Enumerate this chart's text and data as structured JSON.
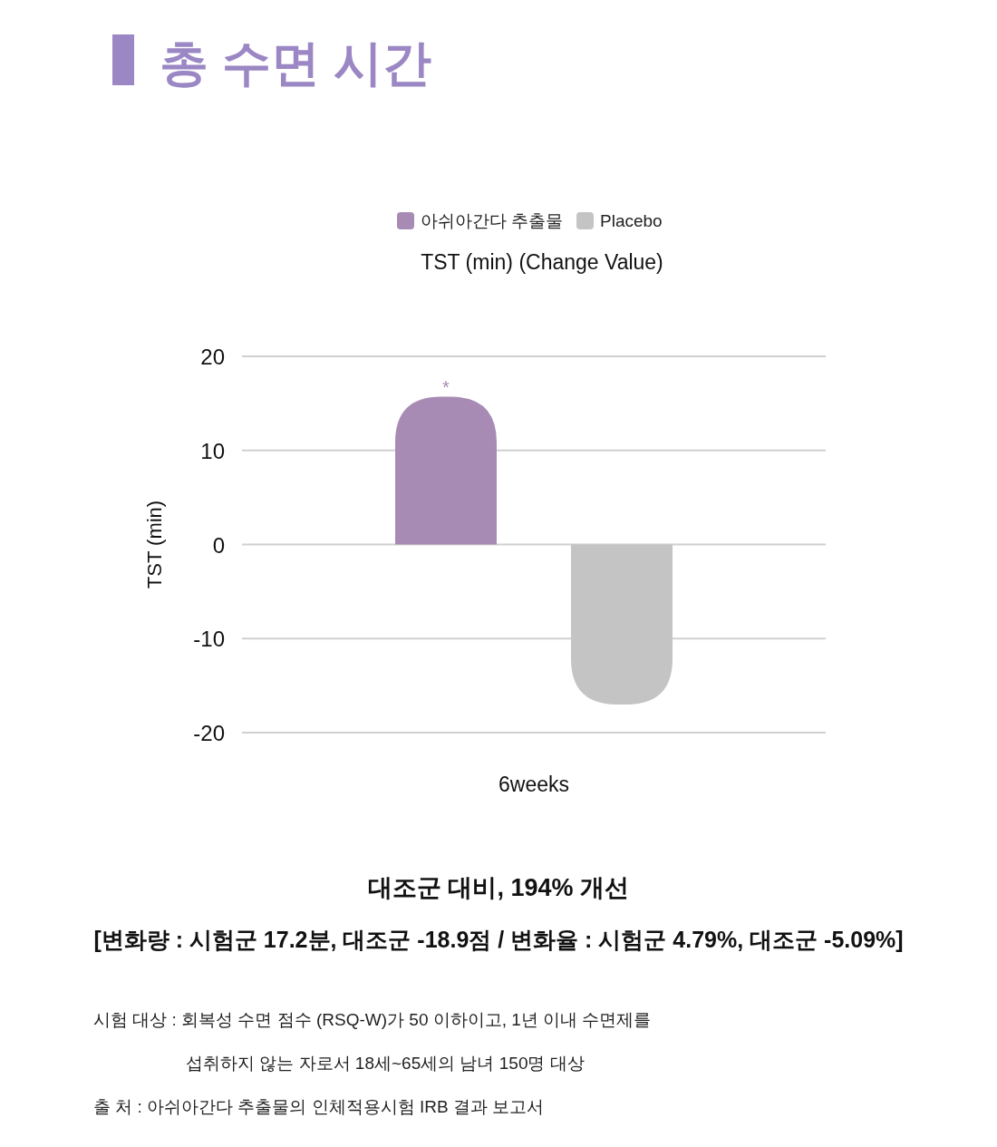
{
  "chart_data": {
    "type": "bar",
    "title": "총 수면 시간",
    "subtitle": "TST (min) (Change Value)",
    "ylabel": "TST (min)",
    "categories": [
      "6weeks"
    ],
    "series": [
      {
        "name": "아쉬아간다 추출물",
        "color": "#a78bb5",
        "values": [
          15.7
        ]
      },
      {
        "name": "Placebo",
        "color": "#c4c4c4",
        "values": [
          -17.0
        ]
      }
    ],
    "ylim": [
      -20,
      20
    ],
    "yticks": [
      -20,
      -10,
      0,
      10,
      20
    ],
    "grid": "y",
    "legend": "top",
    "annotations": [
      "*",
      "대조군 대비, 194% 개선",
      "[변화량 : 시험군 17.2분, 대조군 -18.9점 / 변화율 : 시험군 4.79%, 대조군 -5.09%]",
      "시험 대상 : 회복성 수면 점수 (RSQ-W)가 50 이하이고, 1년 이내 수면제를",
      "섭취하지 않는 자로서 18세~65세의 남녀 150명 대상",
      "출 처 : 아쉬아간다 추출물의 인체적용시험 IRB 결과 보고서"
    ]
  }
}
